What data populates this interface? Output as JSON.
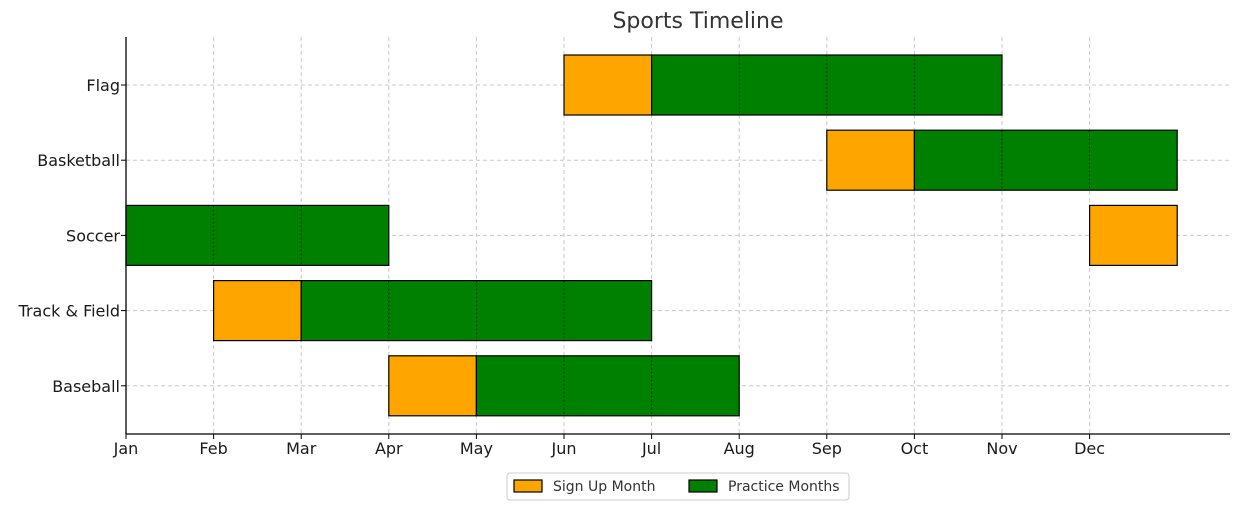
{
  "chart_data": {
    "type": "gantt",
    "title": "Sports Timeline",
    "xlabel": "",
    "ylabel": "",
    "x_ticks": [
      "Jan",
      "Feb",
      "Mar",
      "Apr",
      "May",
      "Jun",
      "Jul",
      "Aug",
      "Sep",
      "Oct",
      "Nov",
      "Dec"
    ],
    "xlim": [
      0,
      12.6
    ],
    "categories": [
      "Flag",
      "Basketball",
      "Soccer",
      "Track & Field",
      "Baseball"
    ],
    "grid": true,
    "legend_placement": "bottom-center",
    "series": [
      {
        "name": "Sign Up Month",
        "color": "#FFA500",
        "bars": [
          {
            "category": "Flag",
            "start": 5,
            "duration": 1
          },
          {
            "category": "Basketball",
            "start": 8,
            "duration": 1
          },
          {
            "category": "Soccer",
            "start": 11,
            "duration": 1
          },
          {
            "category": "Track & Field",
            "start": 1,
            "duration": 1
          },
          {
            "category": "Baseball",
            "start": 3,
            "duration": 1
          }
        ]
      },
      {
        "name": "Practice Months",
        "color": "#008000",
        "bars": [
          {
            "category": "Flag",
            "start": 6,
            "duration": 4
          },
          {
            "category": "Basketball",
            "start": 9,
            "duration": 3
          },
          {
            "category": "Soccer",
            "start": 0,
            "duration": 3
          },
          {
            "category": "Track & Field",
            "start": 2,
            "duration": 4
          },
          {
            "category": "Baseball",
            "start": 4,
            "duration": 3
          }
        ]
      }
    ]
  }
}
